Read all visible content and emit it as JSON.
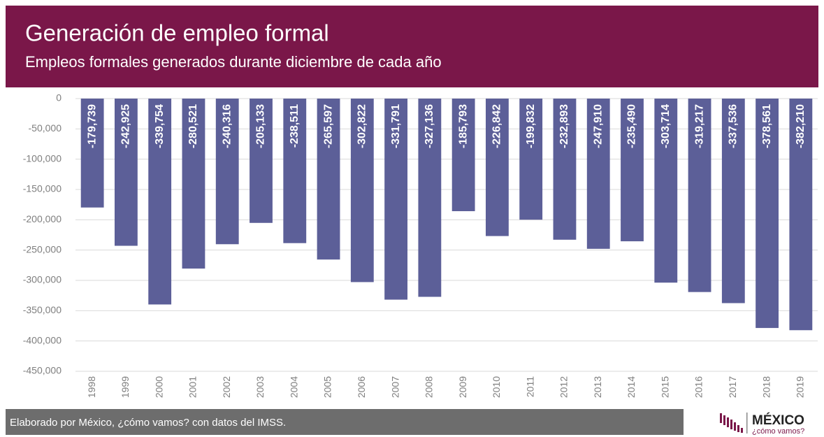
{
  "chart_data": {
    "type": "bar",
    "title": "Generación de empleo formal",
    "subtitle": "Empleos formales generados durante diciembre de cada año",
    "categories": [
      "1998",
      "1999",
      "2000",
      "2001",
      "2002",
      "2003",
      "2004",
      "2005",
      "2006",
      "2007",
      "2008",
      "2009",
      "2010",
      "2011",
      "2012",
      "2013",
      "2014",
      "2015",
      "2016",
      "2017",
      "2018",
      "2019"
    ],
    "values": [
      -179739,
      -242925,
      -339754,
      -280521,
      -240316,
      -205133,
      -238511,
      -265597,
      -302822,
      -331791,
      -327136,
      -185793,
      -226842,
      -199832,
      -232893,
      -247910,
      -235490,
      -303714,
      -319217,
      -337536,
      -378561,
      -382210
    ],
    "value_labels": [
      "-179,739",
      "-242,925",
      "-339,754",
      "-280,521",
      "-240,316",
      "-205,133",
      "-238,511",
      "-265,597",
      "-302,822",
      "-331,791",
      "-327,136",
      "-185,793",
      "-226,842",
      "-199,832",
      "-232,893",
      "-247,910",
      "-235,490",
      "-303,714",
      "-319,217",
      "-337,536",
      "-378,561",
      "-382,210"
    ],
    "color": "#5c5f98",
    "ylim": [
      -450000,
      0
    ],
    "yticks": [
      0,
      {
        "value": -50000,
        "label": "-50,000"
      },
      {
        "value": -100000,
        "label": "-100,000"
      },
      {
        "value": -150000,
        "label": "-150,000"
      },
      {
        "value": -200000,
        "label": "-200,000"
      },
      {
        "value": -250000,
        "label": "-250,000"
      },
      {
        "value": -300000,
        "label": "-300,000"
      },
      {
        "value": -350000,
        "label": "-350,000"
      },
      {
        "value": -400000,
        "label": "-400,000"
      },
      {
        "value": -450000,
        "label": "-450,000"
      }
    ],
    "grid": true,
    "source": "Elaborado por México, ¿cómo vamos? con datos del IMSS.",
    "logo": {
      "name": "MÉXICO",
      "tagline": "¿cómo vamos?"
    }
  }
}
